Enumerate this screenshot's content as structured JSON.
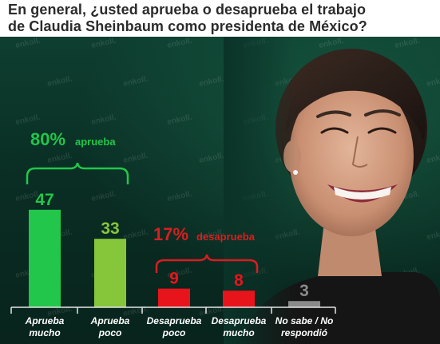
{
  "title_lines": [
    "En general, ¿usted aprueba o desaprueba el trabajo",
    "de Claudia Sheinbaum como presidenta de México?"
  ],
  "watermark": "enkoll.",
  "colors": {
    "approve_dark": "#22c64a",
    "approve_light": "#86c63a",
    "disapprove": "#e8141b",
    "no_answer": "#8a8a8a",
    "approve_bracket": "#22c64a",
    "disapprove_bracket": "#d81e1e"
  },
  "groups": {
    "approve": {
      "pct": "80%",
      "label": "aprueba"
    },
    "disapprove": {
      "pct": "17%",
      "label": "desaprueba"
    }
  },
  "chart_data": {
    "type": "bar",
    "title": "En general, ¿usted aprueba o desaprueba el trabajo de Claudia Sheinbaum como presidenta de México?",
    "categories": [
      [
        "Aprueba",
        "mucho"
      ],
      [
        "Aprueba",
        "poco"
      ],
      [
        "Desaprueba",
        "poco"
      ],
      [
        "Desaprueba",
        "mucho"
      ],
      [
        "No sabe / No",
        "respondió"
      ]
    ],
    "values": [
      47,
      33,
      9,
      8,
      3
    ],
    "bar_colors": [
      "#22c64a",
      "#86c63a",
      "#e8141b",
      "#e8141b",
      "#8a8a8a"
    ],
    "value_label_colors": [
      "#22c64a",
      "#86c63a",
      "#e8141b",
      "#e8141b",
      "#8a8a8a"
    ],
    "xlabel": "",
    "ylabel": "",
    "grid": false,
    "legend": "none"
  }
}
